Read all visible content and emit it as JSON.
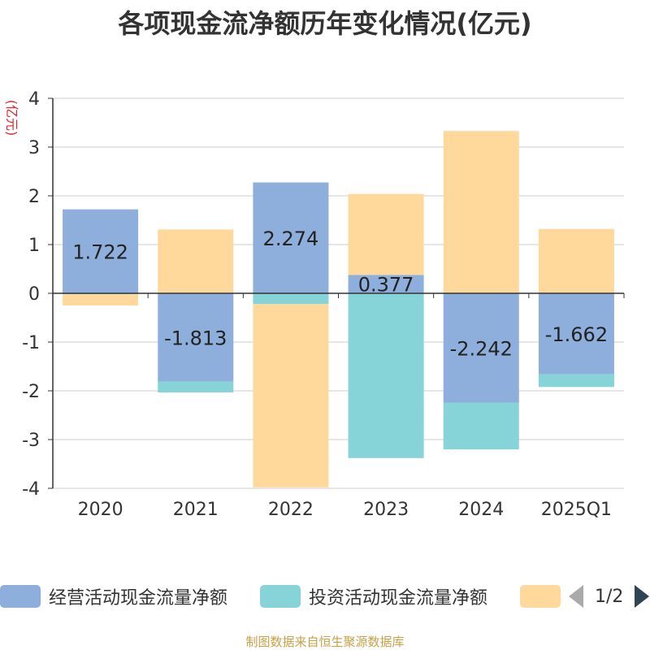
{
  "title": "各项现金流净额历年变化情况(亿元)",
  "chart_data": {
    "type": "bar",
    "stacked": true,
    "categories": [
      "2020",
      "2021",
      "2022",
      "2023",
      "2024",
      "2025Q1"
    ],
    "ylabel": "(亿元)",
    "ylim": [
      -4,
      4
    ],
    "yticks": [
      4,
      3,
      2,
      1,
      0,
      -1,
      -2,
      -3,
      -4
    ],
    "grid": true,
    "series": [
      {
        "name": "经营活动现金流量净额",
        "color": "#8eaedb",
        "values": [
          1.722,
          -1.813,
          2.274,
          0.377,
          -2.242,
          -1.662
        ],
        "labels": [
          "1.722",
          "-1.813",
          "2.274",
          "0.377",
          "-2.242",
          "-1.662"
        ]
      },
      {
        "name": "投资活动现金流量净额",
        "color": "#87d4d8",
        "values": [
          -0.02,
          -0.22,
          -0.22,
          -3.38,
          -0.96,
          -0.26
        ]
      },
      {
        "name": "",
        "color": "#fed99b",
        "values": [
          -0.23,
          1.31,
          -3.76,
          1.66,
          3.33,
          1.32
        ]
      }
    ]
  },
  "legend": {
    "pager_text": "1/2"
  },
  "footer": "制图数据来自恒生聚源数据库"
}
